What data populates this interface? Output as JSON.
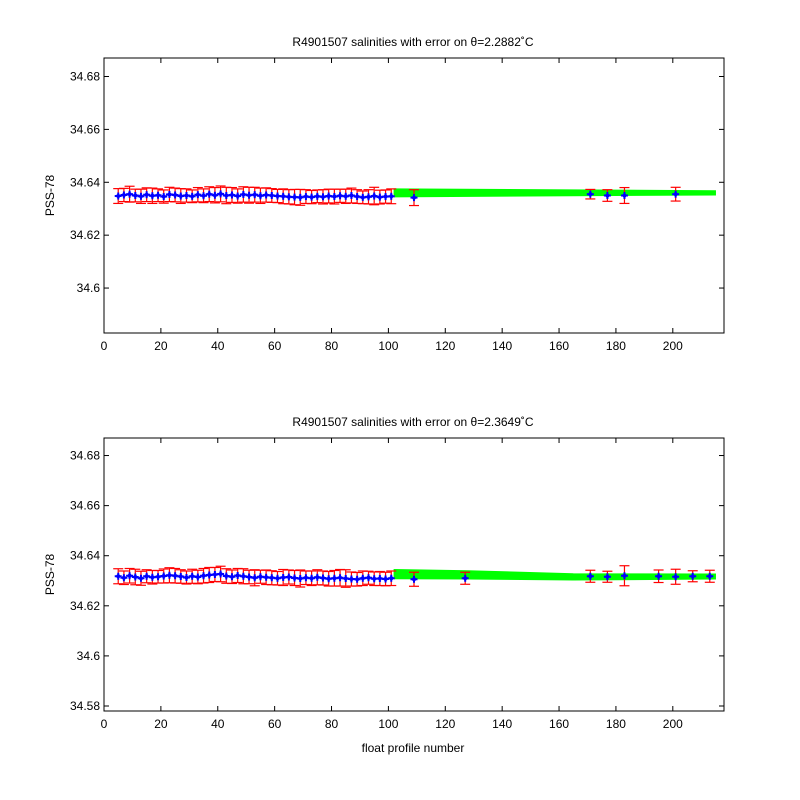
{
  "figure": {
    "background": "#ffffff",
    "xlabel_bottom": "float profile number"
  },
  "colors": {
    "error_bar": "#ff0000",
    "point": "#0000ff",
    "band": "#00ff00",
    "axes": "#000000"
  },
  "chart_data": [
    {
      "type": "scatter",
      "title": "R4901507 salinities with error on θ=2.2882˚C",
      "xlabel": "",
      "ylabel": "PSS-78",
      "xlim": [
        0,
        218
      ],
      "ylim": [
        34.583,
        34.687
      ],
      "xticks": [
        0,
        20,
        40,
        60,
        80,
        100,
        120,
        140,
        160,
        180,
        200
      ],
      "yticks": [
        34.6,
        34.62,
        34.64,
        34.66,
        34.68
      ],
      "ytick_labels": [
        "34.6",
        "34.62",
        "34.64",
        "34.66",
        "34.68"
      ],
      "grid": false,
      "series": [
        {
          "kind": "errorbar",
          "x": [
            5,
            7,
            9,
            11,
            13,
            15,
            17,
            19,
            21,
            23,
            25,
            27,
            29,
            31,
            33,
            35,
            37,
            39,
            41,
            43,
            45,
            47,
            49,
            51,
            53,
            55,
            57,
            59,
            61,
            63,
            65,
            67,
            69,
            71,
            73,
            75,
            77,
            79,
            81,
            83,
            85,
            87,
            89,
            91,
            93,
            95,
            97,
            99,
            101,
            109,
            171,
            177,
            183,
            201
          ],
          "y": [
            34.6348,
            34.6352,
            34.6355,
            34.635,
            34.6347,
            34.6353,
            34.6349,
            34.6351,
            34.6346,
            34.6354,
            34.6352,
            34.6348,
            34.635,
            34.6347,
            34.6353,
            34.6349,
            34.6355,
            34.6351,
            34.6356,
            34.635,
            34.6352,
            34.6348,
            34.6354,
            34.6351,
            34.6353,
            34.6349,
            34.6352,
            34.635,
            34.6348,
            34.6347,
            34.6345,
            34.6344,
            34.6343,
            34.6346,
            34.6344,
            34.6347,
            34.6345,
            34.6348,
            34.6346,
            34.6349,
            34.6347,
            34.635,
            34.6346,
            34.6343,
            34.6345,
            34.6348,
            34.6344,
            34.6346,
            34.6347,
            34.6342,
            34.6355,
            34.635,
            34.635,
            34.6355
          ],
          "err": [
            0.0028,
            0.0025,
            0.003,
            0.0024,
            0.0027,
            0.0026,
            0.0029,
            0.0024,
            0.0025,
            0.0027,
            0.0026,
            0.0028,
            0.0025,
            0.0024,
            0.0027,
            0.0026,
            0.0028,
            0.0029,
            0.003,
            0.0031,
            0.0028,
            0.0027,
            0.0029,
            0.003,
            0.0028,
            0.0029,
            0.0027,
            0.0026,
            0.0025,
            0.0028,
            0.0027,
            0.0029,
            0.003,
            0.0026,
            0.0025,
            0.0024,
            0.0027,
            0.0026,
            0.0028,
            0.0025,
            0.0027,
            0.0028,
            0.0026,
            0.0024,
            0.0027,
            0.0033,
            0.0026,
            0.0025,
            0.0028,
            0.003,
            0.0018,
            0.0022,
            0.003,
            0.0026
          ]
        },
        {
          "kind": "band",
          "x": [
            102,
            215
          ],
          "y_upper": [
            34.6375,
            34.6368
          ],
          "y_lower": [
            34.6345,
            34.6352
          ]
        }
      ]
    },
    {
      "type": "scatter",
      "title": "R4901507 salinities with error on θ=2.3649˚C",
      "xlabel": "float profile number",
      "ylabel": "PSS-78",
      "xlim": [
        0,
        218
      ],
      "ylim": [
        34.578,
        34.687
      ],
      "xticks": [
        0,
        20,
        40,
        60,
        80,
        100,
        120,
        140,
        160,
        180,
        200
      ],
      "yticks": [
        34.58,
        34.6,
        34.62,
        34.64,
        34.66,
        34.68
      ],
      "ytick_labels": [
        "34.58",
        "34.6",
        "34.62",
        "34.64",
        "34.66",
        "34.68"
      ],
      "grid": false,
      "series": [
        {
          "kind": "errorbar",
          "x": [
            5,
            7,
            9,
            11,
            13,
            15,
            17,
            19,
            21,
            23,
            25,
            27,
            29,
            31,
            33,
            35,
            37,
            39,
            41,
            43,
            45,
            47,
            49,
            51,
            53,
            55,
            57,
            59,
            61,
            63,
            65,
            67,
            69,
            71,
            73,
            75,
            77,
            79,
            81,
            83,
            85,
            87,
            89,
            91,
            93,
            95,
            97,
            99,
            101,
            109,
            127,
            171,
            177,
            183,
            195,
            201,
            207,
            213
          ],
          "y": [
            34.6318,
            34.6312,
            34.632,
            34.6315,
            34.631,
            34.6318,
            34.6314,
            34.6316,
            34.6319,
            34.6322,
            34.632,
            34.6317,
            34.6313,
            34.6318,
            34.6315,
            34.632,
            34.6323,
            34.6325,
            34.6327,
            34.6319,
            34.6316,
            34.6321,
            34.6318,
            34.6315,
            34.6312,
            34.6316,
            34.6314,
            34.6312,
            34.631,
            34.6313,
            34.6315,
            34.6311,
            34.6309,
            34.6312,
            34.631,
            34.6314,
            34.6311,
            34.6308,
            34.631,
            34.6312,
            34.6309,
            34.6307,
            34.6306,
            34.631,
            34.6312,
            34.6308,
            34.6309,
            34.6307,
            34.631,
            34.6306,
            34.631,
            34.6318,
            34.6316,
            34.632,
            34.6318,
            34.6316,
            34.6318,
            34.6318
          ],
          "err": [
            0.003,
            0.0027,
            0.0029,
            0.0031,
            0.0028,
            0.0026,
            0.0027,
            0.0025,
            0.0028,
            0.003,
            0.0029,
            0.0027,
            0.0026,
            0.0028,
            0.0027,
            0.0029,
            0.003,
            0.0028,
            0.0031,
            0.0029,
            0.0027,
            0.0028,
            0.003,
            0.0027,
            0.0032,
            0.0026,
            0.0029,
            0.0028,
            0.0027,
            0.0032,
            0.0028,
            0.003,
            0.0034,
            0.0027,
            0.0029,
            0.003,
            0.0028,
            0.0029,
            0.0031,
            0.0033,
            0.0035,
            0.0028,
            0.0027,
            0.0029,
            0.0026,
            0.0027,
            0.0028,
            0.0027,
            0.0029,
            0.0028,
            0.0024,
            0.0024,
            0.0022,
            0.004,
            0.0025,
            0.003,
            0.0022,
            0.0024
          ]
        },
        {
          "kind": "band",
          "x": [
            102,
            128,
            165,
            215
          ],
          "y_upper": [
            34.6345,
            34.634,
            34.6328,
            34.6327
          ],
          "y_lower": [
            34.6308,
            34.6307,
            34.6303,
            34.6307
          ]
        }
      ]
    }
  ]
}
